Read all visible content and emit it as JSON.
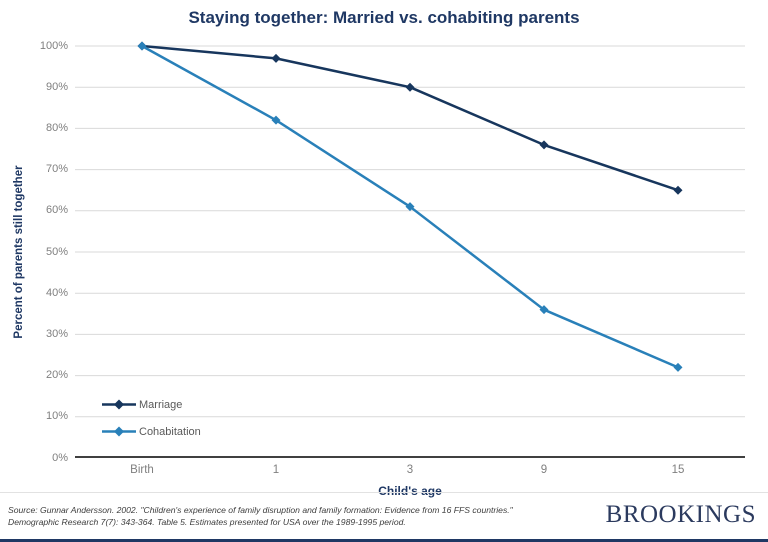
{
  "chart_data": {
    "type": "line",
    "title": "Staying together: Married vs. cohabiting parents",
    "xlabel": "Child's age",
    "ylabel": "Percent of parents still together",
    "categories": [
      "Birth",
      "1",
      "3",
      "9",
      "15"
    ],
    "series": [
      {
        "name": "Marriage",
        "values": [
          100,
          97,
          90,
          76,
          65
        ],
        "color": "#17365d",
        "marker": "diamond"
      },
      {
        "name": "Cohabitation",
        "values": [
          100,
          82,
          61,
          36,
          22
        ],
        "color": "#2980b9",
        "marker": "diamond"
      }
    ],
    "ylim": [
      0,
      100
    ],
    "y_ticks": [
      "0%",
      "10%",
      "20%",
      "30%",
      "40%",
      "50%",
      "60%",
      "70%",
      "80%",
      "90%",
      "100%"
    ],
    "grid": "horizontal",
    "legend_position": "inside-bottom-left"
  },
  "footer": {
    "source_line1": "Source: Gunnar Andersson. 2002. \"Children's experience of family disruption and family formation: Evidence from 16 FFS countries.\"",
    "source_line2": "Demographic Research 7(7): 343-364. Table 5. Estimates presented for USA over the 1989-1995 period.",
    "logo": "BROOKINGS"
  },
  "colors": {
    "navy": "#1f3864",
    "axis_line": "#404040",
    "gridline": "#d9d9d9",
    "tick_label": "#7f7f7f",
    "legend_text": "#595959",
    "source_text": "#3d3d3d",
    "logo_navy": "#2b3a5e",
    "background": "#ffffff"
  }
}
